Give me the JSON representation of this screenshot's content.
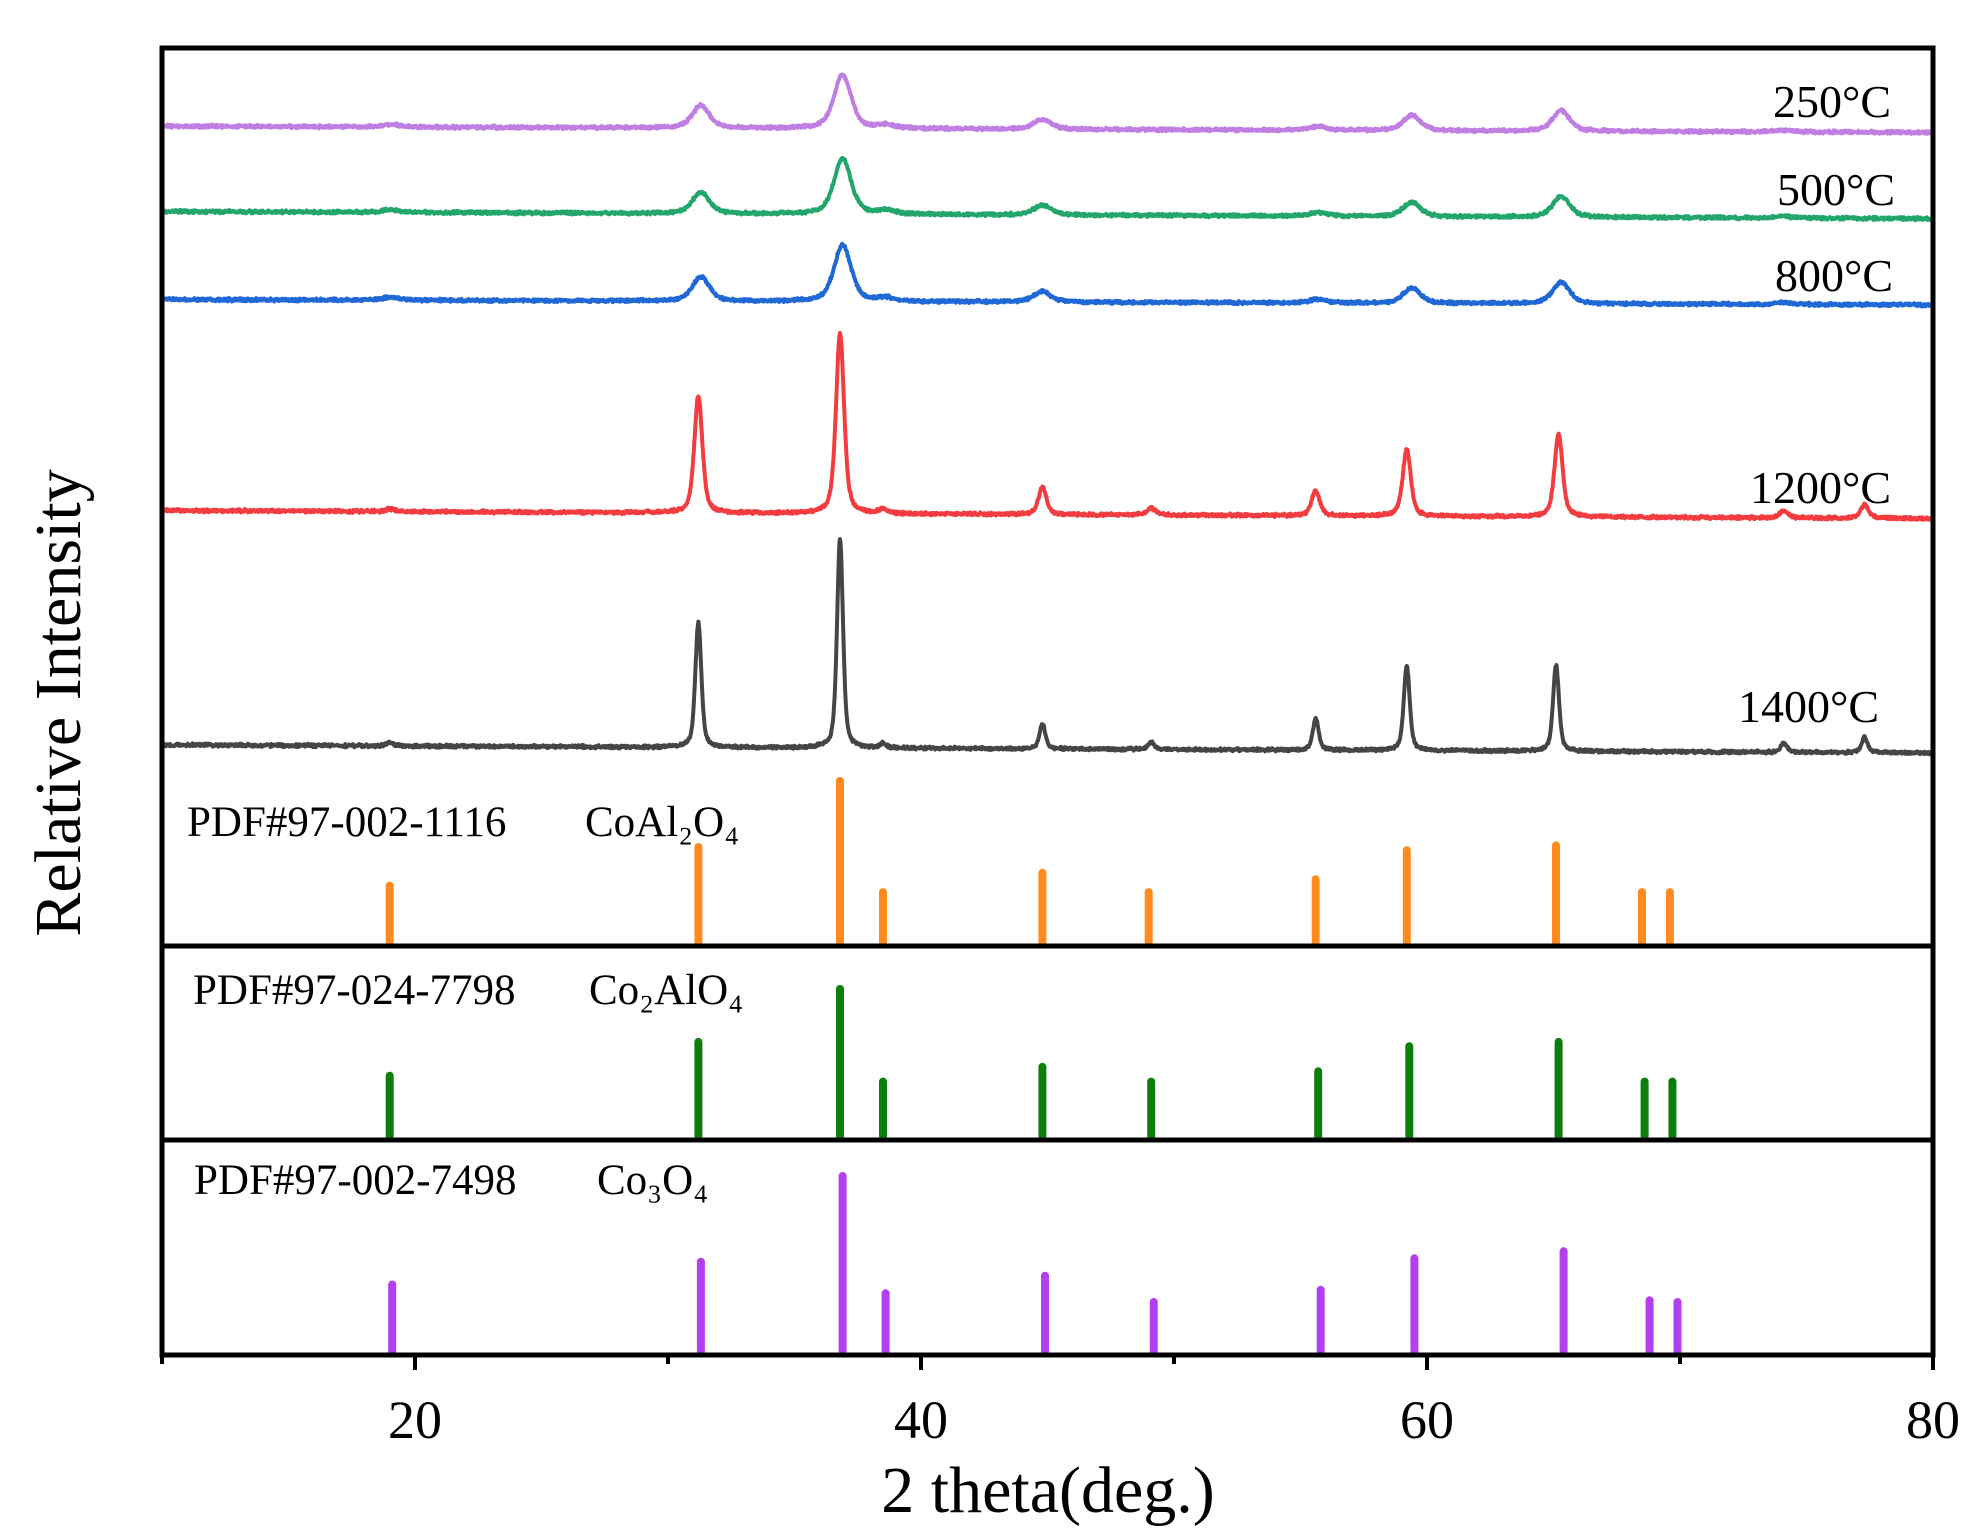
{
  "chart_data": {
    "type": "line",
    "title": "",
    "xlabel": "2 theta(deg.)",
    "ylabel": "Relative Intensity",
    "xlim": [
      10,
      80
    ],
    "ylim": [
      0,
      100
    ],
    "xticks": [
      20,
      40,
      60,
      80
    ],
    "xtick_labels": [
      "20",
      "40",
      "60",
      "80"
    ],
    "minor_xticks": [
      10,
      30,
      50,
      70
    ],
    "grid": false,
    "series": [
      {
        "name": "250°C",
        "color": "#c07ee3",
        "baseline": [
          91.3,
          90.6
        ],
        "fwhm": 0.8,
        "noise": 0.2,
        "peaks": [
          [
            19.0,
            0.3
          ],
          [
            31.3,
            2.5
          ],
          [
            36.9,
            6.0
          ],
          [
            38.6,
            0.4
          ],
          [
            44.8,
            1.1
          ],
          [
            55.7,
            0.4
          ],
          [
            59.4,
            1.7
          ],
          [
            65.3,
            2.3
          ],
          [
            74.1,
            0.2
          ]
        ]
      },
      {
        "name": "500°C",
        "color": "#22a66c",
        "baseline": [
          81.8,
          81.0
        ],
        "fwhm": 0.8,
        "noise": 0.2,
        "peaks": [
          [
            19.0,
            0.3
          ],
          [
            31.3,
            2.4
          ],
          [
            36.9,
            6.2
          ],
          [
            38.6,
            0.4
          ],
          [
            44.8,
            1.1
          ],
          [
            55.7,
            0.4
          ],
          [
            59.4,
            1.6
          ],
          [
            65.3,
            2.3
          ],
          [
            74.1,
            0.2
          ]
        ]
      },
      {
        "name": "800°C",
        "color": "#1f68d6",
        "baseline": [
          72.0,
          71.4
        ],
        "fwhm": 0.8,
        "noise": 0.2,
        "peaks": [
          [
            19.0,
            0.3
          ],
          [
            31.3,
            2.7
          ],
          [
            36.9,
            6.3
          ],
          [
            38.6,
            0.4
          ],
          [
            44.8,
            1.2
          ],
          [
            55.7,
            0.4
          ],
          [
            59.4,
            1.7
          ],
          [
            65.3,
            2.4
          ],
          [
            74.1,
            0.2
          ]
        ]
      },
      {
        "name": "1200°C",
        "color": "#f23c3f",
        "baseline": [
          48.5,
          47.6
        ],
        "fwhm": 0.38,
        "noise": 0.2,
        "peaks": [
          [
            19.0,
            0.3
          ],
          [
            31.2,
            13.0
          ],
          [
            36.8,
            20.0
          ],
          [
            38.5,
            0.5
          ],
          [
            44.8,
            3.0
          ],
          [
            49.1,
            0.8
          ],
          [
            55.6,
            2.8
          ],
          [
            59.2,
            7.4
          ],
          [
            65.2,
            9.2
          ],
          [
            74.1,
            0.8
          ],
          [
            77.3,
            1.5
          ]
        ]
      },
      {
        "name": "1400°C",
        "color": "#454545",
        "baseline": [
          22.4,
          21.5
        ],
        "fwhm": 0.28,
        "noise": 0.2,
        "peaks": [
          [
            19.0,
            0.4
          ],
          [
            31.2,
            13.9
          ],
          [
            36.8,
            23.2
          ],
          [
            38.5,
            0.5
          ],
          [
            44.8,
            2.8
          ],
          [
            49.1,
            0.8
          ],
          [
            55.6,
            3.5
          ],
          [
            59.2,
            9.4
          ],
          [
            65.1,
            9.6
          ],
          [
            74.1,
            1.0
          ],
          [
            77.3,
            1.7
          ]
        ]
      }
    ],
    "references": [
      {
        "label": "PDF#97-002-1116",
        "formula": "CoAl₂O₄",
        "color": "#ff8b1f",
        "sticks": [
          [
            19.0,
            35
          ],
          [
            31.2,
            59
          ],
          [
            36.8,
            100
          ],
          [
            38.5,
            31
          ],
          [
            44.8,
            43
          ],
          [
            49.0,
            31
          ],
          [
            55.6,
            39
          ],
          [
            59.2,
            57
          ],
          [
            65.1,
            60
          ],
          [
            68.5,
            31
          ],
          [
            69.6,
            31
          ]
        ]
      },
      {
        "label": "PDF#97-024-7798",
        "formula": "Co₂AlO₄",
        "color": "#0b7e0b",
        "sticks": [
          [
            19.0,
            41
          ],
          [
            31.2,
            64
          ],
          [
            36.8,
            100
          ],
          [
            38.5,
            37
          ],
          [
            44.8,
            47
          ],
          [
            49.1,
            37
          ],
          [
            55.7,
            44
          ],
          [
            59.3,
            61
          ],
          [
            65.2,
            64
          ],
          [
            68.6,
            37
          ],
          [
            69.7,
            37
          ]
        ]
      },
      {
        "label": "PDF#97-002-7498",
        "formula": "Co₃O₄",
        "color": "#b43ff0",
        "sticks": [
          [
            19.1,
            38
          ],
          [
            31.3,
            51
          ],
          [
            36.9,
            100
          ],
          [
            38.6,
            33
          ],
          [
            44.9,
            43
          ],
          [
            49.2,
            28
          ],
          [
            55.8,
            35
          ],
          [
            59.5,
            53
          ],
          [
            65.4,
            57
          ],
          [
            68.8,
            29
          ],
          [
            69.9,
            28
          ]
        ]
      }
    ]
  }
}
